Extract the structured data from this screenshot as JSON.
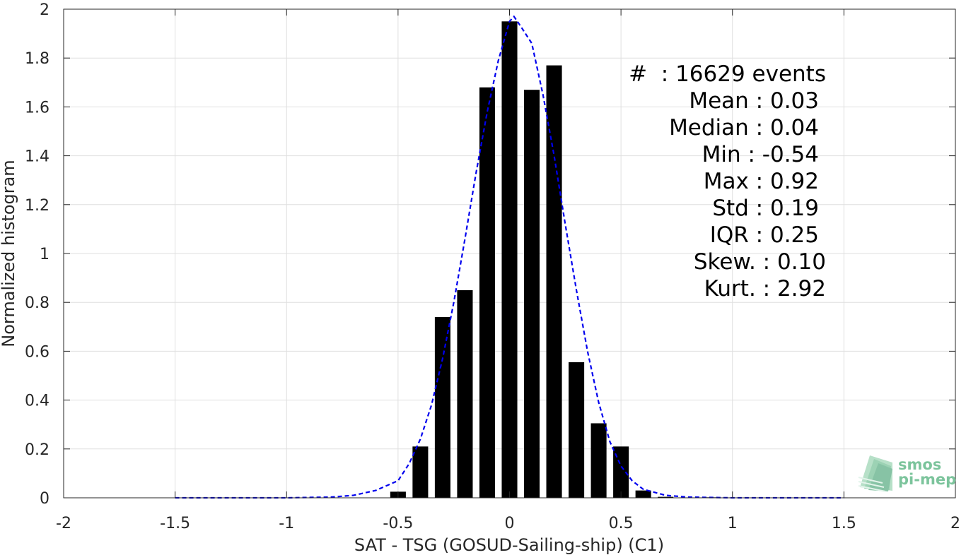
{
  "chart_data": {
    "type": "bar",
    "xlabel": "SAT - TSG (GOSUD-Sailing-ship) (C1)",
    "ylabel": "Normalized histogram",
    "xlim": [
      -2,
      2
    ],
    "ylim": [
      0,
      2
    ],
    "grid": true,
    "x_ticks": [
      "-2",
      "-1.5",
      "-1",
      "-0.5",
      "0",
      "0.5",
      "1",
      "1.5",
      "2"
    ],
    "y_ticks": [
      "0",
      "0.2",
      "0.4",
      "0.6",
      "0.8",
      "1",
      "1.2",
      "1.4",
      "1.6",
      "1.8",
      "2"
    ],
    "bar_color": "#000000",
    "bar_width": 0.07,
    "bars": [
      {
        "x": -0.5,
        "value": 0.025
      },
      {
        "x": -0.4,
        "value": 0.21
      },
      {
        "x": -0.3,
        "value": 0.74
      },
      {
        "x": -0.2,
        "value": 0.85
      },
      {
        "x": -0.1,
        "value": 1.68
      },
      {
        "x": 0.0,
        "value": 1.95
      },
      {
        "x": 0.1,
        "value": 1.67
      },
      {
        "x": 0.2,
        "value": 1.77
      },
      {
        "x": 0.3,
        "value": 0.555
      },
      {
        "x": 0.4,
        "value": 0.305
      },
      {
        "x": 0.5,
        "value": 0.21
      },
      {
        "x": 0.6,
        "value": 0.03
      },
      {
        "x": 0.7,
        "value": 0.004
      },
      {
        "x": 0.9,
        "value": 0.002
      }
    ],
    "fit_curve": {
      "color": "#0000ee",
      "style": "dashed",
      "points": [
        [
          -1.5,
          0.0
        ],
        [
          -1.2,
          0.0
        ],
        [
          -1.0,
          0.0
        ],
        [
          -0.8,
          0.003
        ],
        [
          -0.7,
          0.01
        ],
        [
          -0.6,
          0.03
        ],
        [
          -0.5,
          0.07
        ],
        [
          -0.45,
          0.14
        ],
        [
          -0.4,
          0.24
        ],
        [
          -0.35,
          0.38
        ],
        [
          -0.3,
          0.57
        ],
        [
          -0.25,
          0.8
        ],
        [
          -0.2,
          1.06
        ],
        [
          -0.15,
          1.33
        ],
        [
          -0.1,
          1.58
        ],
        [
          -0.05,
          1.79
        ],
        [
          0.0,
          1.95
        ],
        [
          0.02,
          1.97
        ],
        [
          0.05,
          1.93
        ],
        [
          0.1,
          1.86
        ],
        [
          0.15,
          1.65
        ],
        [
          0.2,
          1.4
        ],
        [
          0.25,
          1.12
        ],
        [
          0.3,
          0.85
        ],
        [
          0.35,
          0.6
        ],
        [
          0.4,
          0.39
        ],
        [
          0.45,
          0.23
        ],
        [
          0.5,
          0.13
        ],
        [
          0.55,
          0.07
        ],
        [
          0.6,
          0.035
        ],
        [
          0.7,
          0.01
        ],
        [
          0.8,
          0.003
        ],
        [
          1.0,
          0.0
        ],
        [
          1.2,
          0.0
        ],
        [
          1.5,
          0.0
        ]
      ]
    }
  },
  "stats": {
    "events": "#  : 16629 events",
    "mean": "Mean : 0.03",
    "median": "Median : 0.04",
    "min": "Min : -0.54",
    "max": "Max : 0.92",
    "std": "Std : 0.19",
    "iqr": "IQR : 0.25",
    "skew": "Skew. : 0.10",
    "kurt": "Kurt. : 2.92"
  },
  "logo": {
    "line1": "smos",
    "line2": "pi-mep",
    "color": "#5fb088"
  }
}
